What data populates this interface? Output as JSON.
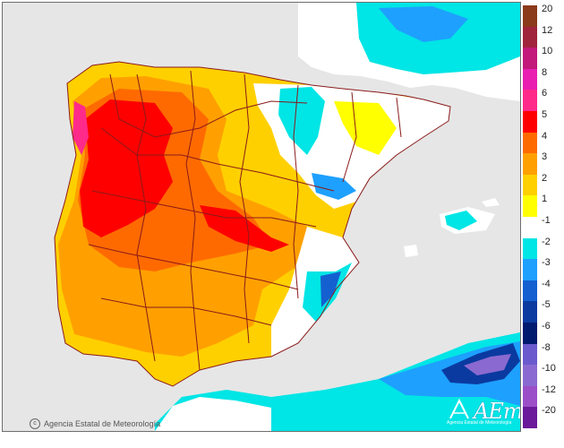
{
  "map": {
    "attribution": "Agencia Estatal de Meteorología",
    "logo_text": "AEmet",
    "logo_subtext": "Agencia Estatal de Meteorología"
  },
  "legend": {
    "entries": [
      {
        "label": "20",
        "color": "#8b3a1a"
      },
      {
        "label": "12",
        "color": "#a0243c"
      },
      {
        "label": "10",
        "color": "#c2197a"
      },
      {
        "label": "8",
        "color": "#e81fb0"
      },
      {
        "label": "6",
        "color": "#ff2a8a"
      },
      {
        "label": "5",
        "color": "#ff0000"
      },
      {
        "label": "4",
        "color": "#ff6a00"
      },
      {
        "label": "3",
        "color": "#ffa000"
      },
      {
        "label": "2",
        "color": "#ffd000"
      },
      {
        "label": "1",
        "color": "#ffff00"
      },
      {
        "label": "-1",
        "color": "#ffffff"
      },
      {
        "label": "-2",
        "color": "#00e5e5"
      },
      {
        "label": "-3",
        "color": "#1ea0ff"
      },
      {
        "label": "-4",
        "color": "#1460d0"
      },
      {
        "label": "-5",
        "color": "#0a3aa0"
      },
      {
        "label": "-6",
        "color": "#001a70"
      },
      {
        "label": "-8",
        "color": "#6a5acd"
      },
      {
        "label": "-10",
        "color": "#8a6ad0"
      },
      {
        "label": "-12",
        "color": "#9a4fc8"
      },
      {
        "label": "-20",
        "color": "#6a1a9a"
      }
    ]
  },
  "colors": {
    "sea": "#e6e6e6",
    "border": "#8b1a1a"
  }
}
